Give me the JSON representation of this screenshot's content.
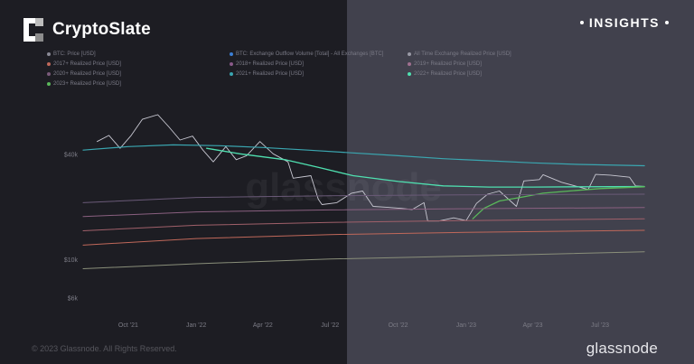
{
  "header": {
    "logo_text": "CryptoSlate",
    "tag": "INSIGHTS"
  },
  "footer": {
    "copyright": "© 2023 Glassnode. All Rights Reserved.",
    "brand": "glassnode"
  },
  "watermark": "glassnode",
  "colors": {
    "left_panel": "#1d1d23",
    "right_panel": "#41414d",
    "btc_price": "#c8c8d2",
    "realized_2022": "#4fe0b0",
    "realized_2017": "#3aa6b0"
  },
  "chart_data": {
    "type": "line",
    "y_scale": "log",
    "ylim": [
      5000,
      120000
    ],
    "y_ticks": [
      {
        "value": 6000,
        "label": "$6k"
      },
      {
        "value": 10000,
        "label": "$10k"
      },
      {
        "value": 40000,
        "label": "$40k"
      }
    ],
    "x_ticks": [
      {
        "date": "2021-10-01",
        "label": "Oct '21"
      },
      {
        "date": "2022-01-01",
        "label": "Jan '22"
      },
      {
        "date": "2022-04-01",
        "label": "Apr '22"
      },
      {
        "date": "2022-07-01",
        "label": "Jul '22"
      },
      {
        "date": "2022-10-01",
        "label": "Oct '22"
      },
      {
        "date": "2023-01-01",
        "label": "Jan '23"
      },
      {
        "date": "2023-04-01",
        "label": "Apr '23"
      },
      {
        "date": "2023-07-01",
        "label": "Jul '23"
      }
    ],
    "xlim": [
      "2021-08-01",
      "2023-09-05"
    ],
    "legend": [
      {
        "label": "BTC: Price [USD]",
        "color": "#8a8a96"
      },
      {
        "label": "BTC: Exchange Outflow Volume [Total] - All Exchanges [BTC]",
        "color": "#3b7fd6"
      },
      {
        "label": "All Time Exchange Realized Price [USD]",
        "color": "#9a9aa6"
      },
      {
        "label": "2017+ Realized Price [USD]",
        "color": "#c0685a"
      },
      {
        "label": "2018+ Realized Price [USD]",
        "color": "#8a5a8a"
      },
      {
        "label": "2019+ Realized Price [USD]",
        "color": "#a07090"
      },
      {
        "label": "2020+ Realized Price [USD]",
        "color": "#7a5a7a"
      },
      {
        "label": "2021+ Realized Price [USD]",
        "color": "#3aa6b0"
      },
      {
        "label": "2022+ Realized Price [USD]",
        "color": "#4fe0b0"
      },
      {
        "label": "2023+ Realized Price [USD]",
        "color": "#5ab85a"
      }
    ],
    "series": [
      {
        "name": "BTC: Price [USD]",
        "color": "#c8c8d2",
        "width": 0.9,
        "points": [
          [
            "2021-08-20",
            47000
          ],
          [
            "2021-09-05",
            51000
          ],
          [
            "2021-09-20",
            43000
          ],
          [
            "2021-10-05",
            51000
          ],
          [
            "2021-10-20",
            63000
          ],
          [
            "2021-11-10",
            67000
          ],
          [
            "2021-11-25",
            57000
          ],
          [
            "2021-12-10",
            48000
          ],
          [
            "2021-12-27",
            50500
          ],
          [
            "2022-01-10",
            42000
          ],
          [
            "2022-01-24",
            36000
          ],
          [
            "2022-02-10",
            44000
          ],
          [
            "2022-02-24",
            37000
          ],
          [
            "2022-03-10",
            39000
          ],
          [
            "2022-03-28",
            47000
          ],
          [
            "2022-04-15",
            40000
          ],
          [
            "2022-05-05",
            36000
          ],
          [
            "2022-05-12",
            29000
          ],
          [
            "2022-06-05",
            30000
          ],
          [
            "2022-06-15",
            22000
          ],
          [
            "2022-06-20",
            20500
          ],
          [
            "2022-07-10",
            21000
          ],
          [
            "2022-07-30",
            23800
          ],
          [
            "2022-08-14",
            24500
          ],
          [
            "2022-08-28",
            20000
          ],
          [
            "2022-09-15",
            19800
          ],
          [
            "2022-10-05",
            19500
          ],
          [
            "2022-10-20",
            19200
          ],
          [
            "2022-11-05",
            21000
          ],
          [
            "2022-11-10",
            16500
          ],
          [
            "2022-11-25",
            16500
          ],
          [
            "2022-12-15",
            17200
          ],
          [
            "2023-01-01",
            16600
          ],
          [
            "2023-01-15",
            20800
          ],
          [
            "2023-01-30",
            23500
          ],
          [
            "2023-02-15",
            24500
          ],
          [
            "2023-03-10",
            20000
          ],
          [
            "2023-03-20",
            28000
          ],
          [
            "2023-04-10",
            28500
          ],
          [
            "2023-04-15",
            30400
          ],
          [
            "2023-05-10",
            27500
          ],
          [
            "2023-06-15",
            25000
          ],
          [
            "2023-06-25",
            30500
          ],
          [
            "2023-07-15",
            30200
          ],
          [
            "2023-08-10",
            29400
          ],
          [
            "2023-08-18",
            26200
          ],
          [
            "2023-08-30",
            26000
          ]
        ]
      },
      {
        "name": "2021+ Realized Price [USD]",
        "color": "#3aa6b0",
        "width": 1.2,
        "points": [
          [
            "2021-08-01",
            42000
          ],
          [
            "2021-10-01",
            44000
          ],
          [
            "2021-12-01",
            45000
          ],
          [
            "2022-02-01",
            44500
          ],
          [
            "2022-04-01",
            43500
          ],
          [
            "2022-06-01",
            42000
          ],
          [
            "2022-08-01",
            40500
          ],
          [
            "2022-10-01",
            39000
          ],
          [
            "2022-12-01",
            37500
          ],
          [
            "2023-02-01",
            36500
          ],
          [
            "2023-04-01",
            35500
          ],
          [
            "2023-06-01",
            34800
          ],
          [
            "2023-08-30",
            34200
          ]
        ]
      },
      {
        "name": "2022+ Realized Price [USD]",
        "color": "#4fe0b0",
        "width": 1.3,
        "points": [
          [
            "2022-01-15",
            43000
          ],
          [
            "2022-03-01",
            40000
          ],
          [
            "2022-05-01",
            37000
          ],
          [
            "2022-06-15",
            33500
          ],
          [
            "2022-08-01",
            30000
          ],
          [
            "2022-10-01",
            27800
          ],
          [
            "2022-12-01",
            26200
          ],
          [
            "2023-02-01",
            25800
          ],
          [
            "2023-04-01",
            25800
          ],
          [
            "2023-06-01",
            25900
          ],
          [
            "2023-08-30",
            26000
          ]
        ]
      },
      {
        "name": "2023+ Realized Price [USD]",
        "color": "#5ab85a",
        "width": 1.3,
        "points": [
          [
            "2023-01-10",
            17000
          ],
          [
            "2023-01-25",
            19500
          ],
          [
            "2023-02-15",
            21500
          ],
          [
            "2023-03-15",
            22500
          ],
          [
            "2023-04-15",
            23800
          ],
          [
            "2023-05-20",
            24500
          ],
          [
            "2023-07-01",
            25300
          ],
          [
            "2023-08-30",
            25900
          ]
        ]
      },
      {
        "name": "2020+ Realized Price [USD]",
        "color": "#6a5a78",
        "width": 1.0,
        "points": [
          [
            "2021-08-01",
            21000
          ],
          [
            "2022-01-01",
            22500
          ],
          [
            "2022-07-01",
            23000
          ],
          [
            "2023-01-01",
            23300
          ],
          [
            "2023-08-30",
            23500
          ]
        ]
      },
      {
        "name": "2019+ Realized Price [USD]",
        "color": "#8a6080",
        "width": 1.0,
        "points": [
          [
            "2021-08-01",
            17500
          ],
          [
            "2022-01-01",
            18600
          ],
          [
            "2022-07-01",
            19100
          ],
          [
            "2023-01-01",
            19400
          ],
          [
            "2023-08-30",
            19700
          ]
        ]
      },
      {
        "name": "2018+ Realized Price [USD]",
        "color": "#a0606a",
        "width": 1.0,
        "points": [
          [
            "2021-08-01",
            14500
          ],
          [
            "2022-01-01",
            15600
          ],
          [
            "2022-07-01",
            16200
          ],
          [
            "2023-01-01",
            16600
          ],
          [
            "2023-08-30",
            17000
          ]
        ]
      },
      {
        "name": "2017+ Realized Price [USD]",
        "color": "#c0685a",
        "width": 1.0,
        "points": [
          [
            "2021-08-01",
            12000
          ],
          [
            "2022-01-01",
            13100
          ],
          [
            "2022-07-01",
            13800
          ],
          [
            "2023-01-01",
            14200
          ],
          [
            "2023-08-30",
            14600
          ]
        ]
      },
      {
        "name": "All Time Exchange Realized Price [USD]",
        "color": "#8a8f7a",
        "width": 1.0,
        "points": [
          [
            "2021-08-01",
            8800
          ],
          [
            "2022-01-01",
            9400
          ],
          [
            "2022-07-01",
            10000
          ],
          [
            "2023-01-01",
            10400
          ],
          [
            "2023-08-30",
            11000
          ]
        ]
      }
    ]
  }
}
